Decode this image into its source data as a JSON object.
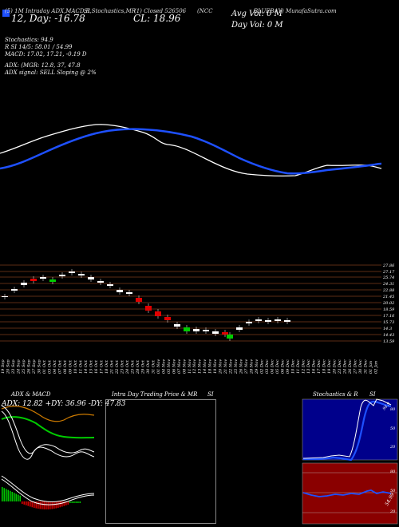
{
  "header": {
    "exchange_line": "(5) 1M Intraday ADX,MACD,R",
    "chart_type": "SI,Stochastics,MR",
    "ticker_code": "(1) Closed 526506",
    "symbol": "(NCC",
    "company": "BLUEBAY) MunafaSutra.com",
    "price_big": "12, Day: -16.78",
    "close_big": "CL: 18.96",
    "avg_vol": "Avg Vol: 0  M",
    "day_vol": "Day Vol: 0  M"
  },
  "indicators": {
    "stochastics": "Stochastics: 94.9",
    "rsi": "R                SI 14/5: 58.01 / 54.99",
    "macd": "MACD: 17.02,  17.21, -0.19 D",
    "adx": "ADX:                    (MGR: 12.8,  37,  47.8",
    "adx_signal": "ADX  signal: SELL  Sloping @ 2%"
  },
  "price_levels": [
    "27.86",
    "27.17",
    "25.74",
    "24.31",
    "22.88",
    "21.45",
    "20.02",
    "18.59",
    "17.16",
    "15.73",
    "14.3",
    "14.43",
    "13.59"
  ],
  "dates": [
    "19 Sep",
    "20 Sep",
    "23 Sep",
    "24 Sep",
    "25 Sep",
    "26 Sep",
    "27 Sep",
    "30 Sep",
    "01 Oct",
    "03 Oct",
    "04 Oct",
    "07 Oct",
    "08 Oct",
    "09 Oct",
    "10 Oct",
    "11 Oct",
    "14 Oct",
    "15 Oct",
    "16 Oct",
    "17 Oct",
    "18 Oct",
    "21 Oct",
    "22 Oct",
    "23 Oct",
    "24 Oct",
    "25 Oct",
    "28 Oct",
    "29 Oct",
    "30 Oct",
    "31 Oct",
    "01 Nov",
    "04 Nov",
    "05 Nov",
    "06 Nov",
    "07 Nov",
    "08 Nov",
    "11 Nov",
    "12 Nov",
    "13 Nov",
    "14 Nov",
    "18 Nov",
    "19 Nov",
    "20 Nov",
    "21 Nov",
    "22 Nov",
    "25 Nov",
    "26 Nov",
    "27 Nov",
    "28 Nov",
    "29 Nov",
    "02 Dec",
    "03 Dec",
    "04 Dec",
    "05 Dec",
    "06 Dec",
    "09 Dec",
    "10 Dec",
    "11 Dec",
    "12 Dec",
    "13 Dec",
    "16 Dec",
    "17 Dec",
    "18 Dec",
    "19 Dec",
    "20 Dec",
    "23 Dec",
    "24 Dec",
    "26 Dec",
    "27 Dec",
    "30 Dec",
    "31 Dec",
    "01 Jan",
    "02 Jan"
  ],
  "panels": {
    "adx_title": "ADX  & MACD",
    "adx_values": "ADX: 12.82  +DY: 36.96  -DY: 47.83",
    "intraday_title": "Intra  Day Trading Price  & MR",
    "intraday_si": "SI",
    "stoch_title": "Stochastics & R",
    "stoch_si": "SI",
    "stoch_levels": [
      "94.9",
      "80",
      "50",
      "20"
    ],
    "rsi_levels": [
      "80",
      "50",
      "20"
    ],
    "rsi_value": "54.99"
  },
  "colors": {
    "blue": "#1e50ff",
    "green": "#00cc00",
    "red": "#e00000",
    "orange": "#cc7a00",
    "panel_red": "#8a0000"
  }
}
